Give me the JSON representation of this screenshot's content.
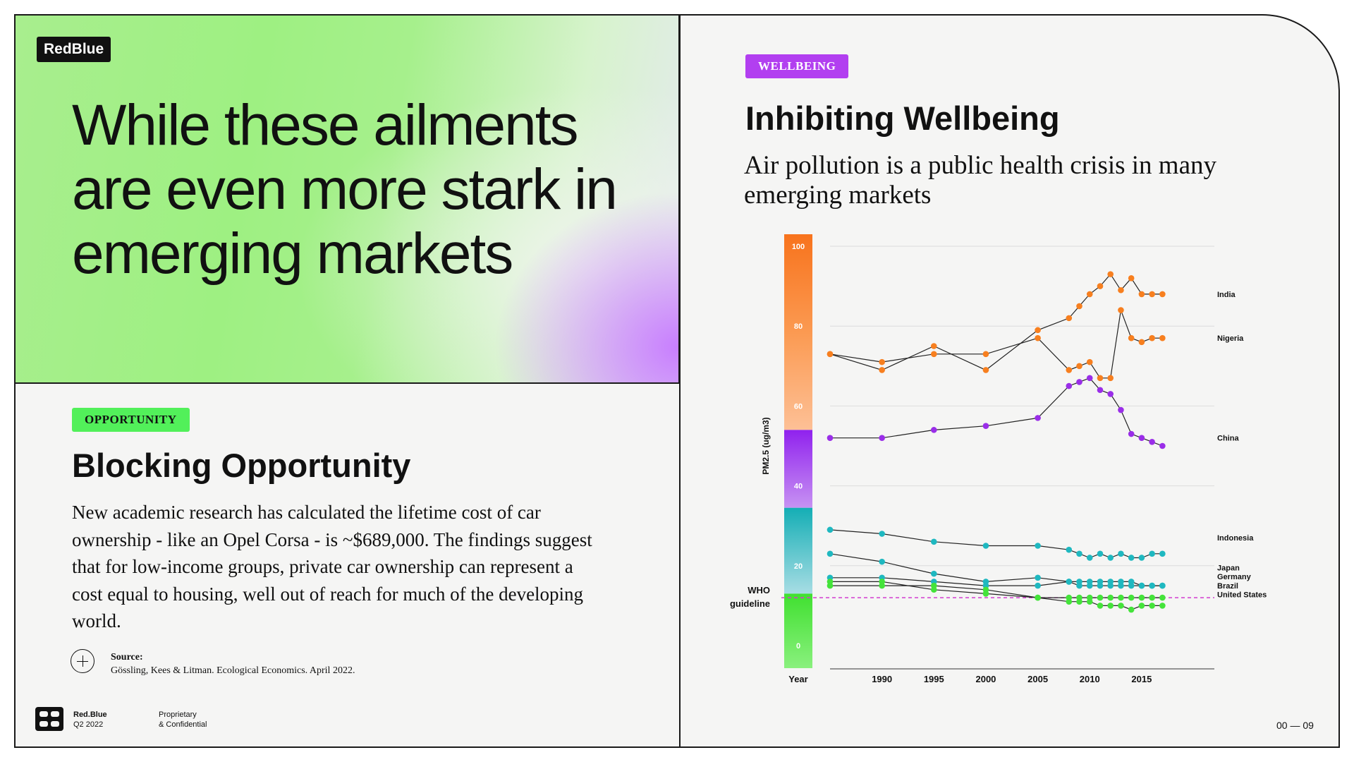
{
  "brand": "RedBlue",
  "hero": {
    "title": "While these ailments are even more stark in emerging markets"
  },
  "left": {
    "tag": "OPPORTUNITY",
    "title": "Blocking Opportunity",
    "body": "New academic research has calculated the lifetime cost of car ownership - like an Opel Corsa - is ~$689,000. The findings suggest that for low-income groups, private car ownership can represent a cost equal to housing, well out of reach for much of the developing world.",
    "source_label": "Source:",
    "source_text": "Gössling, Kees & Litman. Ecological Economics. April 2022."
  },
  "right": {
    "tag": "WELLBEING",
    "title": "Inhibiting Wellbeing",
    "subtitle": "Air pollution is a public health crisis in many emerging markets"
  },
  "footer": {
    "company": "Red.Blue",
    "period": "Q2 2022",
    "conf_line1": "Proprietary",
    "conf_line2": "& Confidential",
    "page": "00 — 09"
  },
  "colors": {
    "orange": "#f77f1f",
    "purple": "#9a2ee8",
    "teal": "#1fb8c0",
    "green": "#44e33a",
    "who_line": "#d23cd0"
  },
  "chart_data": {
    "type": "line",
    "title": "",
    "ylabel": "PM2.5 (ug/m3)",
    "xlabel": "Year",
    "ylim": [
      0,
      100
    ],
    "xlim": [
      1985,
      2022
    ],
    "x_ticks": [
      1990,
      1995,
      2000,
      2005,
      2010,
      2015
    ],
    "y_ticks": [
      0,
      20,
      40,
      60,
      80,
      100
    ],
    "who_label": "WHO guideline",
    "who_value": 12,
    "series": [
      {
        "name": "India",
        "color": "#f77f1f",
        "points": [
          [
            1985,
            73
          ],
          [
            1990,
            69
          ],
          [
            1995,
            75
          ],
          [
            2000,
            69
          ],
          [
            2005,
            79
          ],
          [
            2008,
            82
          ],
          [
            2009,
            85
          ],
          [
            2010,
            88
          ],
          [
            2011,
            90
          ],
          [
            2012,
            93
          ],
          [
            2013,
            89
          ],
          [
            2014,
            92
          ],
          [
            2015,
            88
          ],
          [
            2016,
            88
          ],
          [
            2017,
            88
          ]
        ]
      },
      {
        "name": "Nigeria",
        "color": "#f77f1f",
        "points": [
          [
            1985,
            73
          ],
          [
            1990,
            71
          ],
          [
            1995,
            73
          ],
          [
            2000,
            73
          ],
          [
            2005,
            77
          ],
          [
            2008,
            69
          ],
          [
            2009,
            70
          ],
          [
            2010,
            71
          ],
          [
            2011,
            67
          ],
          [
            2012,
            67
          ],
          [
            2013,
            84
          ],
          [
            2014,
            77
          ],
          [
            2015,
            76
          ],
          [
            2016,
            77
          ],
          [
            2017,
            77
          ]
        ]
      },
      {
        "name": "China",
        "color": "#9a2ee8",
        "points": [
          [
            1985,
            52
          ],
          [
            1990,
            52
          ],
          [
            1995,
            54
          ],
          [
            2000,
            55
          ],
          [
            2005,
            57
          ],
          [
            2008,
            65
          ],
          [
            2009,
            66
          ],
          [
            2010,
            67
          ],
          [
            2011,
            64
          ],
          [
            2012,
            63
          ],
          [
            2013,
            59
          ],
          [
            2014,
            53
          ],
          [
            2015,
            52
          ],
          [
            2016,
            51
          ],
          [
            2017,
            50
          ]
        ]
      },
      {
        "name": "Indonesia",
        "color": "#1fb8c0",
        "points": [
          [
            1985,
            29
          ],
          [
            1990,
            28
          ],
          [
            1995,
            26
          ],
          [
            2000,
            25
          ],
          [
            2005,
            25
          ],
          [
            2008,
            24
          ],
          [
            2009,
            23
          ],
          [
            2010,
            22
          ],
          [
            2011,
            23
          ],
          [
            2012,
            22
          ],
          [
            2013,
            23
          ],
          [
            2014,
            22
          ],
          [
            2015,
            22
          ],
          [
            2016,
            23
          ],
          [
            2017,
            23
          ]
        ]
      },
      {
        "name": "Japan",
        "color": "#1fb8c0",
        "points": [
          [
            1985,
            23
          ],
          [
            1990,
            21
          ],
          [
            1995,
            18
          ],
          [
            2000,
            16
          ],
          [
            2005,
            17
          ],
          [
            2008,
            16
          ],
          [
            2009,
            16
          ],
          [
            2010,
            16
          ],
          [
            2011,
            16
          ],
          [
            2012,
            16
          ],
          [
            2013,
            16
          ],
          [
            2014,
            16
          ],
          [
            2015,
            15
          ],
          [
            2016,
            15
          ],
          [
            2017,
            15
          ]
        ]
      },
      {
        "name": "Germany",
        "color": "#1fb8c0",
        "points": [
          [
            1985,
            17
          ],
          [
            1990,
            17
          ],
          [
            1995,
            16
          ],
          [
            2000,
            15
          ],
          [
            2005,
            15
          ],
          [
            2008,
            16
          ],
          [
            2009,
            15
          ],
          [
            2010,
            15
          ],
          [
            2011,
            15
          ],
          [
            2012,
            15
          ],
          [
            2013,
            15
          ],
          [
            2014,
            15
          ],
          [
            2015,
            15
          ],
          [
            2016,
            15
          ],
          [
            2017,
            15
          ]
        ]
      },
      {
        "name": "Brazil",
        "color": "#44e33a",
        "points": [
          [
            1985,
            16
          ],
          [
            1990,
            16
          ],
          [
            1995,
            14
          ],
          [
            2000,
            13
          ],
          [
            2005,
            12
          ],
          [
            2008,
            12
          ],
          [
            2009,
            12
          ],
          [
            2010,
            12
          ],
          [
            2011,
            12
          ],
          [
            2012,
            12
          ],
          [
            2013,
            12
          ],
          [
            2014,
            12
          ],
          [
            2015,
            12
          ],
          [
            2016,
            12
          ],
          [
            2017,
            12
          ]
        ]
      },
      {
        "name": "United States",
        "color": "#44e33a",
        "points": [
          [
            1985,
            15
          ],
          [
            1990,
            15
          ],
          [
            1995,
            15
          ],
          [
            2000,
            14
          ],
          [
            2005,
            12
          ],
          [
            2008,
            11
          ],
          [
            2009,
            11
          ],
          [
            2010,
            11
          ],
          [
            2011,
            10
          ],
          [
            2012,
            10
          ],
          [
            2013,
            10
          ],
          [
            2014,
            9
          ],
          [
            2015,
            10
          ],
          [
            2016,
            10
          ],
          [
            2017,
            10
          ]
        ]
      }
    ]
  }
}
